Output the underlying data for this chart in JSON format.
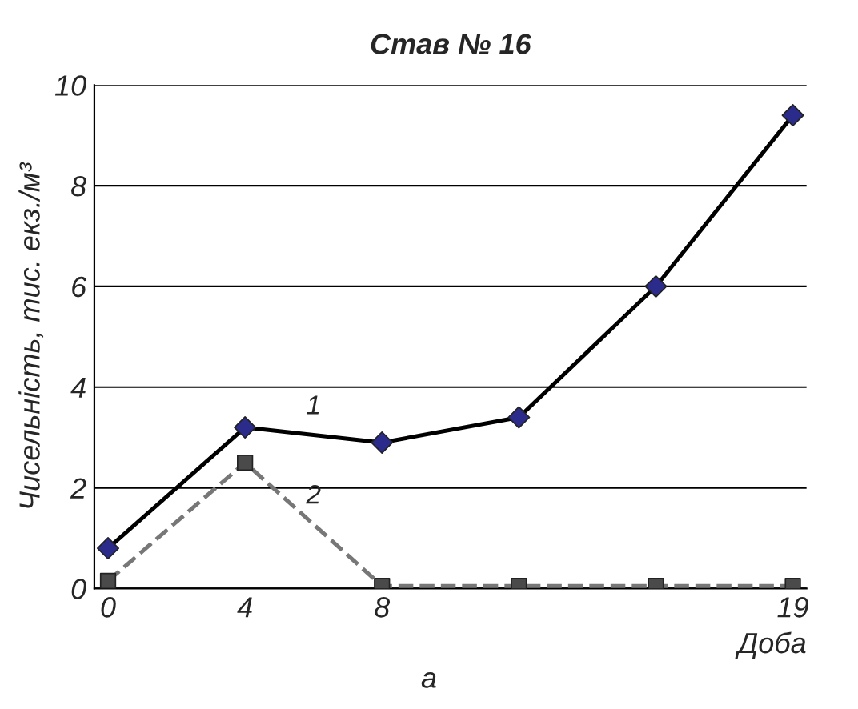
{
  "chart_data": {
    "type": "line",
    "title": "Став № 16",
    "xlabel": "Доба",
    "ylabel": "Чисельність, тис. екз./м³",
    "categories": [
      "0",
      "4",
      "8",
      null,
      null,
      "19"
    ],
    "series": [
      {
        "name": "1",
        "color": "#2b2b8c",
        "marker": "diamond",
        "line_style": "solid",
        "values": [
          0.8,
          3.2,
          2.9,
          3.4,
          6.0,
          9.4
        ]
      },
      {
        "name": "2",
        "color": "#4a4a4a",
        "marker": "square",
        "line_style": "dashed",
        "values": [
          0.15,
          2.5,
          0.05,
          0.05,
          0.05,
          0.05
        ]
      }
    ],
    "ylim": [
      0,
      10
    ],
    "yticks": [
      0,
      2,
      4,
      6,
      8,
      10
    ],
    "grid": "y",
    "legend": false,
    "annotations": [
      "а"
    ]
  }
}
